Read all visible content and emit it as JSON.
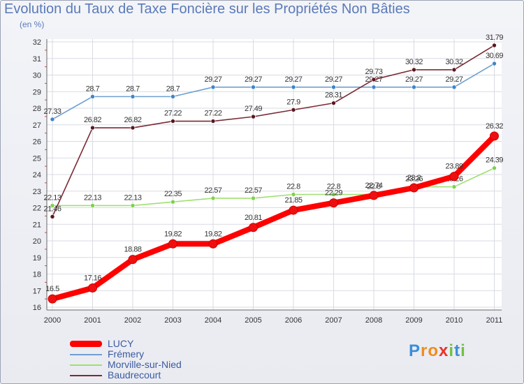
{
  "header": {
    "title": "Evolution du Taux de Taxe Foncière sur les Propriétés Non Bâties",
    "unit": "(en %)"
  },
  "chart_data": {
    "type": "line",
    "title": "Evolution du Taux de Taxe Foncière sur les Propriétés Non Bâties",
    "ylabel": "(en %)",
    "xlabel": "",
    "ylim": [
      16,
      32
    ],
    "yticks": [
      "16",
      "17",
      "18",
      "19",
      "20",
      "21",
      "22",
      "23",
      "24",
      "25",
      "26",
      "27",
      "28",
      "29",
      "30",
      "31",
      "32"
    ],
    "categories": [
      "2000",
      "2001",
      "2002",
      "2003",
      "2004",
      "2005",
      "2006",
      "2007",
      "2008",
      "2009",
      "2010",
      "2011"
    ],
    "grid": true,
    "legend": "bottom-left",
    "series": [
      {
        "name": "Frémery",
        "color": "#6f9fd0",
        "point_color": "#3f85c8",
        "values": [
          27.33,
          28.7,
          28.7,
          28.7,
          29.27,
          29.27,
          29.27,
          29.27,
          29.27,
          29.27,
          29.27,
          30.69
        ],
        "labels": [
          "27.33",
          "28.7",
          "28.7",
          "28.7",
          "29.27",
          "29.27",
          "29.27",
          "29.27",
          "29.27",
          "29.27",
          "29.27",
          "30.69"
        ]
      },
      {
        "name": "Morville-sur-Nied",
        "color": "#9fe070",
        "point_color": "#7dd24c",
        "values": [
          22.13,
          22.13,
          22.13,
          22.35,
          22.57,
          22.57,
          22.8,
          22.8,
          22.8,
          23.26,
          23.26,
          24.39
        ],
        "labels": [
          "22.13",
          "22.13",
          "22.13",
          "22.35",
          "22.57",
          "22.57",
          "22.8",
          "22.8",
          "22.8",
          "23.26",
          "23.26",
          "24.39"
        ]
      },
      {
        "name": "Baudrecourt",
        "color": "#7a2a34",
        "point_color": "#5a1620",
        "values": [
          21.46,
          26.82,
          26.82,
          27.22,
          27.22,
          27.49,
          27.9,
          28.31,
          29.73,
          30.32,
          30.32,
          31.79
        ],
        "labels": [
          "21.46",
          "26.82",
          "26.82",
          "27.22",
          "27.22",
          "27.49",
          "27.9",
          "28.31",
          "29.73",
          "30.32",
          "30.32",
          "31.79"
        ]
      },
      {
        "name": "LUCY",
        "color": "#ff0000",
        "point_color": "#ee1010",
        "values": [
          16.5,
          17.16,
          18.88,
          19.82,
          19.82,
          20.81,
          21.85,
          22.29,
          22.74,
          23.2,
          23.89,
          26.32
        ],
        "labels": [
          "16.5",
          "17.16",
          "18.88",
          "19.82",
          "19.82",
          "20.81",
          "21.85",
          "22.29",
          "22.74",
          "23.2",
          "23.89",
          "26.32"
        ]
      }
    ]
  },
  "legend": {
    "items": [
      {
        "label": "LUCY",
        "color": "#ff0000"
      },
      {
        "label": "Frémery",
        "color": "#6f9fd0"
      },
      {
        "label": "Morville-sur-Nied",
        "color": "#9fe070"
      },
      {
        "label": "Baudrecourt",
        "color": "#7a2a34"
      }
    ]
  },
  "logo": {
    "letters": [
      {
        "ch": "P",
        "color": "#3a8ed8"
      },
      {
        "ch": "r",
        "color": "#f08c1e"
      },
      {
        "ch": "o",
        "color": "#f08c1e"
      },
      {
        "ch": "x",
        "color": "#e8332a"
      },
      {
        "ch": "i",
        "color": "#72c043"
      },
      {
        "ch": "t",
        "color": "#3a8ed8"
      },
      {
        "ch": "i",
        "color": "#72c043"
      }
    ]
  }
}
